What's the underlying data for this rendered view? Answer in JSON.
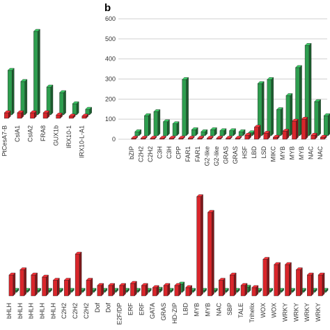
{
  "chart_data": [
    {
      "type": "bar3d",
      "categories": [
        "PtCesA7-B",
        "CslA1",
        "CslA2",
        "FRA8",
        "GUX1b",
        "IRX10-1",
        "IRX10-L-A1"
      ],
      "series": [
        {
          "color": "#2e9e4f",
          "values": [
            40,
            30,
            75,
            25,
            20,
            10,
            5
          ]
        },
        {
          "color": "#d9262b",
          "values": [
            5,
            5,
            5,
            5,
            3,
            2,
            2
          ]
        }
      ],
      "ylim": [
        0,
        100
      ]
    },
    {
      "type": "bar3d",
      "panel_label": "b",
      "categories": [
        "bZIP",
        "C2H2",
        "C2H2",
        "C3H",
        "C3H",
        "CPP",
        "FAR1",
        "FAR1",
        "G2-like",
        "G2-like",
        "GRAS",
        "GRAS",
        "HSF",
        "LBD",
        "LSD",
        "MIKC",
        "MYB",
        "MYB",
        "MYB",
        "NAC",
        "NAC"
      ],
      "series": [
        {
          "color": "#2e9e4f",
          "values": [
            20,
            100,
            120,
            70,
            60,
            280,
            30,
            20,
            30,
            25,
            25,
            20,
            15,
            260,
            280,
            130,
            200,
            340,
            450,
            170,
            100
          ]
        },
        {
          "color": "#d9262b",
          "values": [
            5,
            5,
            5,
            5,
            5,
            5,
            5,
            5,
            5,
            5,
            5,
            5,
            20,
            60,
            30,
            10,
            40,
            90,
            100,
            20,
            10
          ]
        }
      ],
      "ylim": [
        0,
        600
      ],
      "yticks": [
        0,
        100,
        200,
        300,
        400,
        500,
        600
      ],
      "grid": true
    },
    {
      "type": "bar3d",
      "categories": [
        "bHLH",
        "bHLH",
        "bHLH",
        "bHLH",
        "bHLH",
        "C2H2",
        "C2H2",
        "C2H2",
        "Dof",
        "Dof",
        "E2F/DP",
        "ERF",
        "ERF",
        "GATA",
        "GRAS",
        "HD-ZIP",
        "LBD",
        "MYB",
        "MYB",
        "NAC",
        "SBP",
        "TALE",
        "Trihelix",
        "WOX",
        "WOX",
        "WRKY",
        "WRKY",
        "WRKY",
        "WRKY"
      ],
      "series": [
        {
          "color": "#2e9e4f",
          "values": [
            2,
            2,
            2,
            2,
            2,
            2,
            2,
            2,
            2,
            2,
            2,
            2,
            2,
            3,
            2,
            8,
            2,
            2,
            2,
            2,
            2,
            5,
            2,
            2,
            2,
            2,
            2,
            2,
            2
          ]
        },
        {
          "color": "#d9262b",
          "values": [
            20,
            25,
            20,
            18,
            15,
            15,
            40,
            15,
            10,
            10,
            10,
            12,
            10,
            8,
            10,
            10,
            8,
            95,
            80,
            15,
            20,
            10,
            8,
            35,
            30,
            30,
            25,
            20,
            20
          ]
        }
      ],
      "ylim": [
        0,
        100
      ]
    }
  ]
}
